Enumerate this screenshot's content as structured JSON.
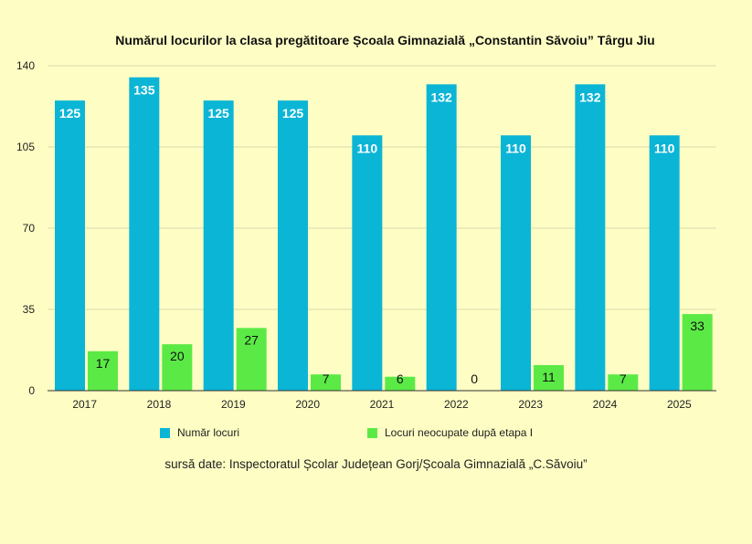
{
  "chart_data": {
    "type": "bar",
    "title": "Numărul locurilor la clasa pregătitoare Școala Gimnazială „Constantin Săvoiu” Târgu Jiu",
    "categories": [
      "2017",
      "2018",
      "2019",
      "2020",
      "2021",
      "2022",
      "2023",
      "2024",
      "2025"
    ],
    "series": [
      {
        "name": "Număr locuri",
        "color": "#0BB5D6",
        "values": [
          125,
          135,
          125,
          125,
          110,
          132,
          110,
          132,
          110
        ]
      },
      {
        "name": "Locuri neocupate după etapa I",
        "color": "#5BEA45",
        "values": [
          17,
          20,
          27,
          7,
          6,
          0,
          11,
          7,
          33
        ]
      }
    ],
    "yticks": [
      0,
      35,
      70,
      105,
      140
    ],
    "ylim": [
      0,
      140
    ],
    "xlabel": "",
    "ylabel": "",
    "grid": true,
    "legend_position": "bottom"
  },
  "source_note": "sursă date: Inspectoratul Școlar Județean Gorj/Școala Gimnazială „C.Săvoiu”"
}
